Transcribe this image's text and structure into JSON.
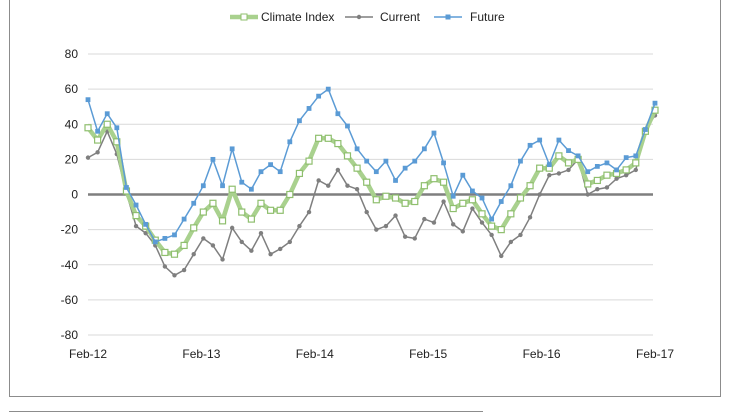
{
  "chart_data": {
    "type": "line",
    "title": "",
    "xlabel": "",
    "ylabel": "",
    "ylim": [
      -80,
      80
    ],
    "y_ticks": [
      -80,
      -60,
      -40,
      -20,
      0,
      20,
      40,
      60,
      80
    ],
    "x_tick_labels": [
      "Feb-12",
      "Feb-13",
      "Feb-14",
      "Feb-15",
      "Feb-16",
      "Feb-17"
    ],
    "x_start": "Feb-12",
    "x_end": "Feb-17",
    "grid": true,
    "legend_position": "top",
    "series": [
      {
        "name": "Climate Index",
        "color": "#a9d18e",
        "marker": "square",
        "values": [
          38,
          31,
          40,
          30,
          2,
          -12,
          -18,
          -26,
          -33,
          -34,
          -29,
          -19,
          -10,
          -5,
          -15,
          3,
          -10,
          -14,
          -5,
          -9,
          -9,
          0,
          12,
          19,
          32,
          32,
          29,
          22,
          15,
          7,
          -3,
          -1,
          -2,
          -5,
          -4,
          5,
          9,
          7,
          -8,
          -5,
          -3,
          -11,
          -18,
          -20,
          -11,
          -2,
          5,
          15,
          15,
          22,
          18,
          20,
          6,
          8,
          11,
          12,
          14,
          18,
          36,
          48
        ]
      },
      {
        "name": "Current",
        "color": "#7f7f7f",
        "marker": "circle",
        "values": [
          21,
          24,
          36,
          23,
          1,
          -18,
          -22,
          -29,
          -41,
          -46,
          -43,
          -34,
          -25,
          -29,
          -37,
          -19,
          -27,
          -32,
          -22,
          -34,
          -31,
          -27,
          -18,
          -10,
          8,
          5,
          14,
          5,
          3,
          -10,
          -20,
          -18,
          -12,
          -24,
          -25,
          -14,
          -16,
          -4,
          -17,
          -21,
          -8,
          -16,
          -23,
          -35,
          -27,
          -23,
          -13,
          0,
          11,
          12,
          14,
          20,
          0,
          3,
          4,
          9,
          11,
          14,
          37,
          45
        ]
      },
      {
        "name": "Future",
        "color": "#5b9bd5",
        "marker": "square",
        "values": [
          54,
          36,
          46,
          38,
          4,
          -6,
          -17,
          -27,
          -25,
          -23,
          -14,
          -5,
          5,
          20,
          5,
          26,
          7,
          3,
          13,
          17,
          13,
          30,
          42,
          49,
          56,
          60,
          46,
          39,
          26,
          19,
          13,
          19,
          8,
          15,
          19,
          26,
          35,
          18,
          -1,
          11,
          2,
          -2,
          -14,
          -4,
          5,
          19,
          28,
          31,
          17,
          31,
          25,
          22,
          13,
          16,
          18,
          14,
          21,
          22,
          37,
          52
        ]
      }
    ]
  }
}
